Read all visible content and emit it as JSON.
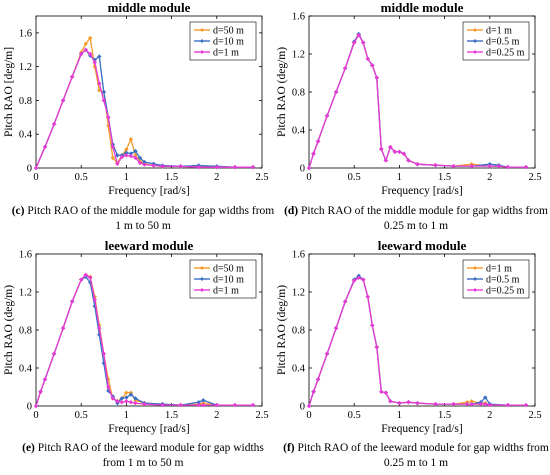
{
  "figure": {
    "charts": [
      {
        "title": "middle module",
        "caption_label": "(c)",
        "caption_lines": [
          "Pitch RAO of the middle module for gap widths from",
          "1 m to 50 m"
        ],
        "legend": [
          "d=50 m",
          "d=10 m",
          "d=1 m"
        ]
      },
      {
        "title": "middle module",
        "caption_label": "(d)",
        "caption_lines": [
          "Pitch RAO of the middle module for gap widths from",
          "0.25 m to 1 m"
        ],
        "legend": [
          "d=1 m",
          "d=0.5 m",
          "d=0.25 m"
        ]
      },
      {
        "title": "leeward module",
        "caption_label": "(e)",
        "caption_lines": [
          "Pitch RAO of the leeward module for gap widths",
          "from 1 m to 50 m"
        ],
        "legend": [
          "d=50 m",
          "d=10 m",
          "d=1 m"
        ]
      },
      {
        "title": "leeward module",
        "caption_label": "(f)",
        "caption_lines": [
          "Pitch RAO of the leeward module for gap widths from",
          "0.25 m to 1 m"
        ],
        "legend": [
          "d=1 m",
          "d=0.5 m",
          "d=0.25 m"
        ]
      }
    ]
  },
  "colors": {
    "orange": "#f39c2a",
    "blue": "#3a6fc4",
    "magenta": "#e83ad6"
  },
  "chart_data": [
    {
      "type": "line",
      "title": "middle module",
      "xlabel": "Frequency [rad/s]",
      "ylabel": "Pitch RAO   [deg/m]",
      "xlim": [
        0,
        2.5
      ],
      "ylim": [
        0,
        1.8
      ],
      "xticks": [
        "0",
        "0.5",
        "1",
        "1.5",
        "2",
        "2.5"
      ],
      "yticks": [
        "0",
        "0.4",
        "0.8",
        "1.2",
        "1.6"
      ],
      "legend_position": "top-right",
      "series": [
        {
          "name": "d=50 m",
          "color": "orange",
          "x": [
            0,
            0.1,
            0.2,
            0.3,
            0.4,
            0.5,
            0.55,
            0.6,
            0.65,
            0.7,
            0.75,
            0.8,
            0.85,
            0.9,
            0.95,
            1.0,
            1.05,
            1.1,
            1.15,
            1.2,
            1.3,
            1.4,
            1.6,
            1.8,
            2.0,
            2.2,
            2.4
          ],
          "y": [
            0,
            0.25,
            0.52,
            0.8,
            1.08,
            1.37,
            1.47,
            1.54,
            1.2,
            0.92,
            0.9,
            0.5,
            0.12,
            0.06,
            0.15,
            0.22,
            0.34,
            0.15,
            0.08,
            0.05,
            0.03,
            0.02,
            0.02,
            0.02,
            0.01,
            0.01,
            0.01
          ]
        },
        {
          "name": "d=10 m",
          "color": "blue",
          "x": [
            0,
            0.1,
            0.2,
            0.3,
            0.4,
            0.5,
            0.55,
            0.6,
            0.65,
            0.7,
            0.75,
            0.8,
            0.85,
            0.9,
            0.95,
            1.0,
            1.05,
            1.1,
            1.15,
            1.2,
            1.3,
            1.4,
            1.6,
            1.8,
            2.0,
            2.2,
            2.4
          ],
          "y": [
            0,
            0.25,
            0.52,
            0.8,
            1.08,
            1.35,
            1.4,
            1.33,
            1.28,
            1.32,
            0.9,
            0.6,
            0.28,
            0.15,
            0.15,
            0.18,
            0.17,
            0.2,
            0.12,
            0.07,
            0.05,
            0.03,
            0.02,
            0.03,
            0.02,
            0.01,
            0.01
          ]
        },
        {
          "name": "d=1 m",
          "color": "magenta",
          "x": [
            0,
            0.1,
            0.2,
            0.3,
            0.4,
            0.5,
            0.55,
            0.6,
            0.65,
            0.7,
            0.75,
            0.8,
            0.85,
            0.9,
            0.95,
            1.0,
            1.05,
            1.1,
            1.15,
            1.2,
            1.3,
            1.4,
            1.6,
            1.8,
            2.0,
            2.2,
            2.4
          ],
          "y": [
            0,
            0.25,
            0.52,
            0.8,
            1.08,
            1.35,
            1.4,
            1.35,
            1.25,
            1.0,
            0.8,
            0.6,
            0.25,
            0.05,
            0.13,
            0.15,
            0.14,
            0.12,
            0.06,
            0.04,
            0.03,
            0.02,
            0.02,
            0.01,
            0.01,
            0.01,
            0.01
          ]
        }
      ]
    },
    {
      "type": "line",
      "title": "middle module",
      "xlabel": "Frequency [rad/s]",
      "ylabel": "Pitch RAO   (deg/m)",
      "xlim": [
        0,
        2.5
      ],
      "ylim": [
        0,
        1.6
      ],
      "xticks": [
        "0",
        "0.5",
        "1",
        "1.5",
        "2",
        "2.5"
      ],
      "yticks": [
        "0",
        "0.4",
        "0.8",
        "1.2",
        "1.6"
      ],
      "legend_position": "top-right",
      "series": [
        {
          "name": "d=1 m",
          "color": "orange",
          "x": [
            0,
            0.05,
            0.1,
            0.2,
            0.3,
            0.4,
            0.5,
            0.55,
            0.6,
            0.65,
            0.7,
            0.75,
            0.8,
            0.85,
            0.9,
            0.95,
            1.0,
            1.05,
            1.1,
            1.2,
            1.4,
            1.6,
            1.8,
            2.0,
            2.1,
            2.2,
            2.4
          ],
          "y": [
            0,
            0.15,
            0.28,
            0.55,
            0.8,
            1.05,
            1.32,
            1.4,
            1.32,
            1.15,
            1.08,
            0.95,
            0.2,
            0.08,
            0.22,
            0.17,
            0.17,
            0.15,
            0.08,
            0.04,
            0.03,
            0.02,
            0.04,
            0.02,
            0.02,
            0.01,
            0.01
          ]
        },
        {
          "name": "d=0.5 m",
          "color": "blue",
          "x": [
            0,
            0.05,
            0.1,
            0.2,
            0.3,
            0.4,
            0.5,
            0.55,
            0.6,
            0.65,
            0.7,
            0.75,
            0.8,
            0.85,
            0.9,
            0.95,
            1.0,
            1.05,
            1.1,
            1.2,
            1.4,
            1.6,
            1.8,
            2.0,
            2.1,
            2.2,
            2.4
          ],
          "y": [
            0,
            0.15,
            0.28,
            0.55,
            0.8,
            1.05,
            1.33,
            1.41,
            1.32,
            1.15,
            1.08,
            0.95,
            0.2,
            0.08,
            0.22,
            0.17,
            0.17,
            0.15,
            0.08,
            0.04,
            0.03,
            0.02,
            0.02,
            0.04,
            0.03,
            0.01,
            0.01
          ]
        },
        {
          "name": "d=0.25 m",
          "color": "magenta",
          "x": [
            0,
            0.05,
            0.1,
            0.2,
            0.3,
            0.4,
            0.5,
            0.55,
            0.6,
            0.65,
            0.7,
            0.75,
            0.8,
            0.85,
            0.9,
            0.95,
            1.0,
            1.05,
            1.1,
            1.2,
            1.4,
            1.6,
            1.8,
            2.0,
            2.1,
            2.2,
            2.4
          ],
          "y": [
            0,
            0.15,
            0.28,
            0.55,
            0.8,
            1.05,
            1.32,
            1.4,
            1.32,
            1.15,
            1.08,
            0.95,
            0.2,
            0.08,
            0.22,
            0.17,
            0.17,
            0.15,
            0.08,
            0.04,
            0.03,
            0.02,
            0.02,
            0.02,
            0.02,
            0.01,
            0.01
          ]
        }
      ]
    },
    {
      "type": "line",
      "title": "leeward module",
      "xlabel": "Frequency [rad/s]",
      "ylabel": "Pitch RAO   (deg/m)",
      "xlim": [
        0,
        2.5
      ],
      "ylim": [
        0,
        1.6
      ],
      "xticks": [
        "0",
        "0.5",
        "1",
        "1.5",
        "2",
        "2.5"
      ],
      "yticks": [
        "0",
        "0.4",
        "0.8",
        "1.2",
        "1.6"
      ],
      "legend_position": "top-right",
      "series": [
        {
          "name": "d=50 m",
          "color": "orange",
          "x": [
            0,
            0.05,
            0.1,
            0.2,
            0.3,
            0.4,
            0.5,
            0.55,
            0.6,
            0.65,
            0.7,
            0.75,
            0.8,
            0.85,
            0.9,
            0.95,
            1.0,
            1.05,
            1.1,
            1.2,
            1.4,
            1.6,
            1.8,
            1.85,
            2.0,
            2.2,
            2.4
          ],
          "y": [
            0,
            0.15,
            0.28,
            0.55,
            0.82,
            1.1,
            1.33,
            1.38,
            1.36,
            1.15,
            0.85,
            0.55,
            0.28,
            0.08,
            0.05,
            0.08,
            0.14,
            0.14,
            0.06,
            0.03,
            0.02,
            0.01,
            0.02,
            0.03,
            0.01,
            0.01,
            0.01
          ]
        },
        {
          "name": "d=10 m",
          "color": "blue",
          "x": [
            0,
            0.05,
            0.1,
            0.2,
            0.3,
            0.4,
            0.5,
            0.55,
            0.6,
            0.65,
            0.7,
            0.75,
            0.8,
            0.85,
            0.9,
            0.95,
            1.0,
            1.05,
            1.1,
            1.2,
            1.4,
            1.6,
            1.8,
            1.85,
            2.0,
            2.2,
            2.4
          ],
          "y": [
            0,
            0.15,
            0.28,
            0.55,
            0.82,
            1.1,
            1.33,
            1.36,
            1.3,
            1.05,
            0.75,
            0.45,
            0.16,
            0.1,
            0.03,
            0.08,
            0.09,
            0.12,
            0.08,
            0.03,
            0.02,
            0.01,
            0.04,
            0.06,
            0.01,
            0.01,
            0.01
          ]
        },
        {
          "name": "d=1 m",
          "color": "magenta",
          "x": [
            0,
            0.05,
            0.1,
            0.2,
            0.3,
            0.4,
            0.5,
            0.55,
            0.6,
            0.65,
            0.7,
            0.75,
            0.8,
            0.85,
            0.9,
            0.95,
            1.0,
            1.05,
            1.1,
            1.2,
            1.4,
            1.6,
            1.8,
            1.85,
            2.0,
            2.2,
            2.4
          ],
          "y": [
            0,
            0.15,
            0.28,
            0.55,
            0.82,
            1.1,
            1.33,
            1.38,
            1.35,
            1.12,
            0.82,
            0.55,
            0.2,
            0.08,
            0.05,
            0.04,
            0.05,
            0.04,
            0.03,
            0.02,
            0.01,
            0.01,
            0.01,
            0.01,
            0.01,
            0.01,
            0.01
          ]
        }
      ]
    },
    {
      "type": "line",
      "title": "leeward module",
      "xlabel": "Frequency [rad/s]",
      "ylabel": "Pitch RAO   (deg/m)",
      "xlim": [
        0,
        2.5
      ],
      "ylim": [
        0,
        1.6
      ],
      "xticks": [
        "0",
        "0.5",
        "1",
        "1.5",
        "2",
        "2.5"
      ],
      "yticks": [
        "0",
        "0.4",
        "0.8",
        "1.2",
        "1.6"
      ],
      "legend_position": "top-right",
      "series": [
        {
          "name": "d=1 m",
          "color": "orange",
          "x": [
            0,
            0.05,
            0.1,
            0.2,
            0.3,
            0.4,
            0.5,
            0.55,
            0.6,
            0.65,
            0.7,
            0.75,
            0.8,
            0.85,
            0.9,
            1.0,
            1.1,
            1.2,
            1.4,
            1.6,
            1.75,
            1.8,
            1.9,
            1.95,
            2.0,
            2.2,
            2.4
          ],
          "y": [
            0,
            0.15,
            0.28,
            0.55,
            0.82,
            1.1,
            1.32,
            1.35,
            1.33,
            1.15,
            0.85,
            0.62,
            0.15,
            0.14,
            0.05,
            0.03,
            0.04,
            0.03,
            0.02,
            0.02,
            0.04,
            0.05,
            0.03,
            0.03,
            0.01,
            0.01,
            0.01
          ]
        },
        {
          "name": "d=0.5 m",
          "color": "blue",
          "x": [
            0,
            0.05,
            0.1,
            0.2,
            0.3,
            0.4,
            0.5,
            0.55,
            0.6,
            0.65,
            0.7,
            0.75,
            0.8,
            0.85,
            0.9,
            1.0,
            1.1,
            1.2,
            1.4,
            1.6,
            1.75,
            1.8,
            1.9,
            1.95,
            2.0,
            2.2,
            2.4
          ],
          "y": [
            0,
            0.15,
            0.28,
            0.55,
            0.82,
            1.1,
            1.33,
            1.37,
            1.33,
            1.15,
            0.85,
            0.62,
            0.15,
            0.14,
            0.05,
            0.03,
            0.04,
            0.03,
            0.02,
            0.02,
            0.02,
            0.02,
            0.04,
            0.09,
            0.02,
            0.01,
            0.01
          ]
        },
        {
          "name": "d=0.25 m",
          "color": "magenta",
          "x": [
            0,
            0.05,
            0.1,
            0.2,
            0.3,
            0.4,
            0.5,
            0.55,
            0.6,
            0.65,
            0.7,
            0.75,
            0.8,
            0.85,
            0.9,
            1.0,
            1.1,
            1.2,
            1.4,
            1.6,
            1.75,
            1.8,
            1.9,
            1.95,
            2.0,
            2.2,
            2.4
          ],
          "y": [
            0,
            0.15,
            0.28,
            0.55,
            0.82,
            1.1,
            1.32,
            1.35,
            1.33,
            1.15,
            0.85,
            0.62,
            0.15,
            0.14,
            0.05,
            0.03,
            0.04,
            0.03,
            0.02,
            0.02,
            0.02,
            0.02,
            0.02,
            0.02,
            0.01,
            0.01,
            0.01
          ]
        }
      ]
    }
  ]
}
